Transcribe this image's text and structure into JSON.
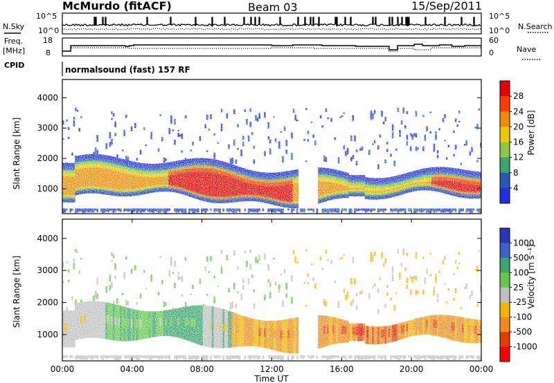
{
  "header": {
    "station": "McMurdo (fitACF)",
    "beam": "Beam 03",
    "date": "15/Sep/2011",
    "cpid_label": "CPID",
    "cpid_value": "normalsound (fast) 157 RF"
  },
  "noise_panel": {
    "left_label": "N.Sky",
    "right_label": "N.Search",
    "left_ticks": [
      "10^5",
      "10^0"
    ],
    "right_ticks": [
      "10^5",
      "10^0"
    ]
  },
  "freq_panel": {
    "left_label_line1": "Freq.",
    "left_label_line2": "[MHz]",
    "right_label": "Nave",
    "left_ticks": [
      "18",
      "8"
    ],
    "right_ticks": [
      "60",
      "0"
    ]
  },
  "chart_data": [
    {
      "type": "heatmap",
      "name": "power",
      "ylabel": "Slant Range [km]",
      "yticks": [
        "1000",
        "2000",
        "3000",
        "4000"
      ],
      "ylim": [
        180,
        4600
      ],
      "colorbar_label": "Power [dB]",
      "colorbar_ticks": [
        "4",
        "8",
        "12",
        "16",
        "20",
        "24",
        "28"
      ],
      "colors": [
        "#2030e0",
        "#285ab4",
        "#3aa56e",
        "#8cc83c",
        "#f0c800",
        "#f08c00",
        "#ff3c00",
        "#e60000"
      ]
    },
    {
      "type": "heatmap",
      "name": "velocity",
      "ylabel": "Slant Range [km]",
      "yticks": [
        "1000",
        "2000",
        "3000",
        "4000"
      ],
      "ylim": [
        180,
        4600
      ],
      "colorbar_label": "Velocity [m s⁻¹]",
      "colorbar_ticks": [
        "1000",
        "500",
        "100",
        "25",
        "-25",
        "-100",
        "-500",
        "-1000"
      ],
      "colors": [
        "#2838b4",
        "#3c64c8",
        "#3aa56e",
        "#64c84b",
        "#bfbfbf",
        "#f5b400",
        "#f08c1e",
        "#e63c00",
        "#ff0000"
      ]
    }
  ],
  "time_axis": {
    "ticks": [
      "00:00",
      "04:00",
      "08:00",
      "12:00",
      "16:00",
      "20:00",
      "00:00"
    ],
    "label": "Time UT"
  }
}
